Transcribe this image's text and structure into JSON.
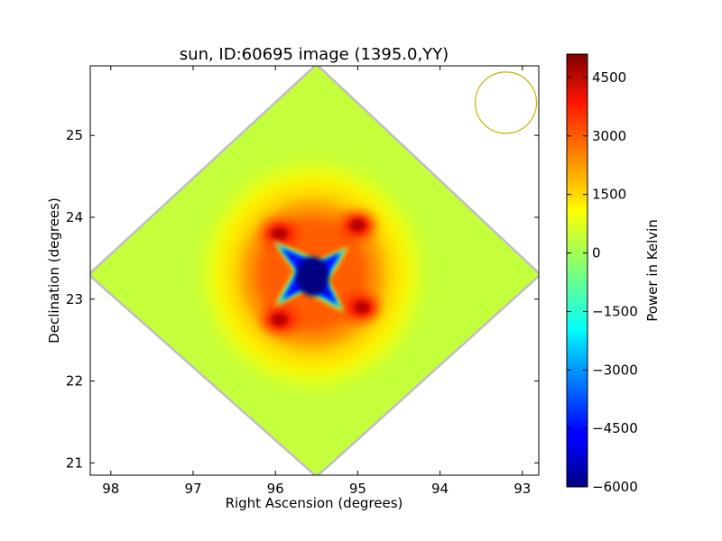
{
  "chart_data": {
    "type": "heatmap",
    "title": "sun, ID:60695 image (1395.0,YY)",
    "xlabel": "Right Ascension (degrees)",
    "ylabel": "Declination (degrees)",
    "colorbar_label": "Power in Kelvin",
    "xlim": [
      98.25,
      92.8
    ],
    "ylim": [
      20.85,
      25.85
    ],
    "x_ticks": [
      98,
      97,
      96,
      95,
      94,
      93
    ],
    "x_tick_labels": [
      "98",
      "97",
      "96",
      "95",
      "94",
      "93"
    ],
    "y_ticks": [
      21,
      22,
      23,
      24,
      25
    ],
    "y_tick_labels": [
      "21",
      "22",
      "23",
      "24",
      "25"
    ],
    "colorbar_range": [
      -6000,
      5100
    ],
    "colorbar_ticks": [
      4500,
      3000,
      1500,
      0,
      -1500,
      -3000,
      -4500,
      -6000
    ],
    "colorbar_tick_labels": [
      "4500",
      "3000",
      "1500",
      "0",
      "−1500",
      "−3000",
      "−4500",
      "−6000"
    ],
    "colormap": "jet",
    "map_extent": {
      "left": [
        98.25,
        23.3
      ],
      "right": [
        92.8,
        23.3
      ],
      "top": [
        95.5,
        25.85
      ],
      "bottom": [
        95.5,
        20.85
      ]
    },
    "background_value": 300,
    "central_feature": {
      "center": [
        95.55,
        23.3
      ],
      "min_value": -6000,
      "shape": "four-pointed star"
    },
    "hot_spots": [
      {
        "ra": 95.95,
        "dec": 23.8,
        "value": 4500
      },
      {
        "ra": 95.0,
        "dec": 23.9,
        "value": 4500
      },
      {
        "ra": 95.95,
        "dec": 22.75,
        "value": 4500
      },
      {
        "ra": 94.95,
        "dec": 22.9,
        "value": 4500
      }
    ],
    "beam_circle": {
      "ra": 93.2,
      "dec": 25.4,
      "color": "#c8b400"
    },
    "colors": {
      "background_map": "#a0ff58",
      "edge": "#c0c0c0"
    }
  }
}
